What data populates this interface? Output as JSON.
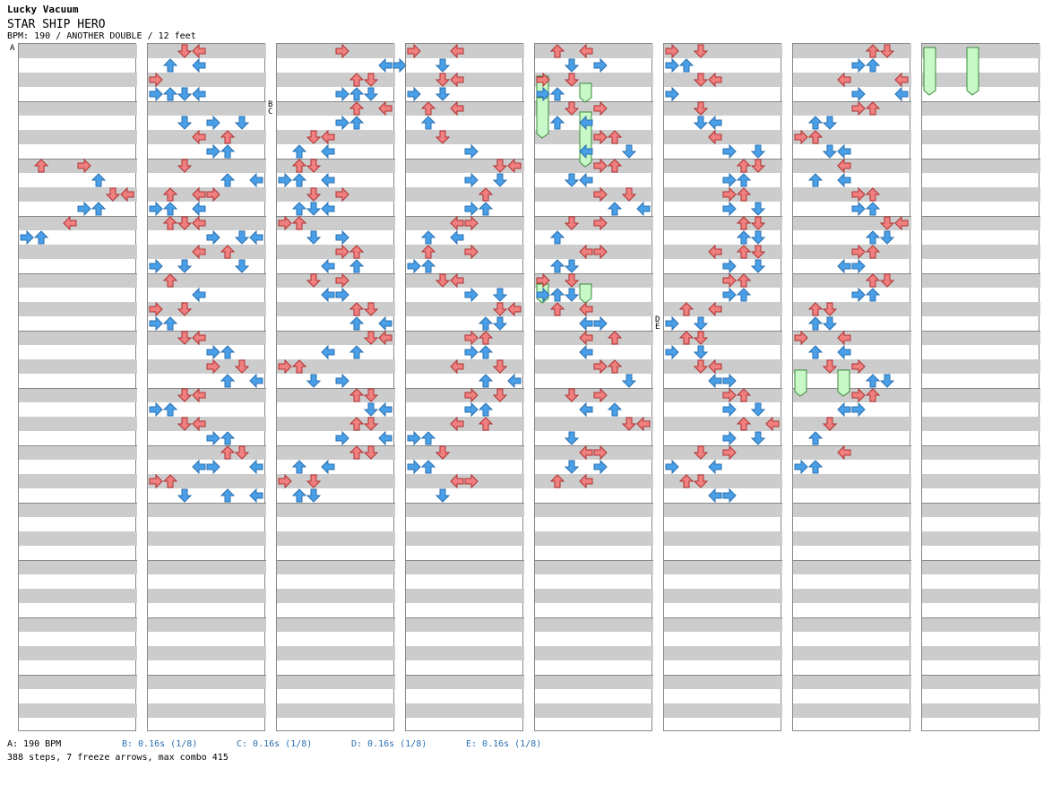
{
  "artist": "Lucky Vacuum",
  "title": "STAR SHIP HERO",
  "info": "BPM: 190 / ANOTHER DOUBLE / 12 feet",
  "markers": [
    "A",
    "B",
    "C",
    "D",
    "E"
  ],
  "footer": {
    "bpm_a": "A: 190 BPM",
    "stop_b": "B: 0.16s (1/8)",
    "stop_c": "C: 0.16s (1/8)",
    "stop_d": "D: 0.16s (1/8)",
    "stop_e": "E: 0.16s (1/8)"
  },
  "stats": "388 steps, 7 freeze arrows, max combo 415",
  "colors": {
    "quarter": "#f08080",
    "eighth": "#4aa0e8",
    "freeze": "#c8f8c8",
    "stripe": "#cccccc",
    "border": "#888888"
  },
  "notes": [
    [
      [
        8,
        1
      ],
      [
        8,
        4
      ],
      [
        9,
        5
      ],
      [
        10,
        6
      ],
      [
        10,
        7
      ],
      [
        11,
        5
      ],
      [
        11,
        4
      ],
      [
        12,
        3
      ],
      [
        13,
        0
      ],
      [
        13,
        1
      ]
    ],
    [
      [
        0,
        3
      ],
      [
        0,
        2
      ],
      [
        1,
        1
      ],
      [
        1,
        3
      ],
      [
        2,
        0
      ],
      [
        3,
        3
      ],
      [
        3,
        1
      ],
      [
        3,
        0
      ],
      [
        3,
        2
      ],
      [
        5,
        2
      ],
      [
        5,
        4
      ],
      [
        5,
        6
      ],
      [
        6,
        3
      ],
      [
        6,
        5
      ],
      [
        7,
        4
      ],
      [
        7,
        5
      ],
      [
        8,
        2
      ],
      [
        9,
        7
      ],
      [
        9,
        5
      ],
      [
        10,
        1
      ],
      [
        10,
        3
      ],
      [
        10,
        4
      ],
      [
        11,
        3
      ],
      [
        11,
        1
      ],
      [
        11,
        0
      ],
      [
        12,
        1
      ],
      [
        12,
        2
      ],
      [
        12,
        3
      ],
      [
        13,
        4
      ],
      [
        13,
        6
      ],
      [
        13,
        7
      ],
      [
        14,
        5
      ],
      [
        14,
        3
      ],
      [
        15,
        6
      ],
      [
        15,
        0
      ],
      [
        15,
        2
      ],
      [
        16,
        1
      ],
      [
        17,
        3
      ],
      [
        18,
        0
      ],
      [
        18,
        2
      ],
      [
        19,
        0
      ],
      [
        19,
        1
      ],
      [
        20,
        2
      ],
      [
        20,
        3
      ],
      [
        21,
        4
      ],
      [
        21,
        5
      ],
      [
        22,
        4
      ],
      [
        22,
        6
      ],
      [
        23,
        7
      ],
      [
        23,
        5
      ],
      [
        24,
        3
      ],
      [
        24,
        2
      ],
      [
        25,
        1
      ],
      [
        25,
        0
      ],
      [
        26,
        2
      ],
      [
        26,
        3
      ],
      [
        27,
        4
      ],
      [
        27,
        5
      ],
      [
        28,
        6
      ],
      [
        28,
        5
      ],
      [
        29,
        7
      ],
      [
        29,
        4
      ],
      [
        29,
        3
      ],
      [
        30,
        0
      ],
      [
        30,
        1
      ],
      [
        31,
        2
      ],
      [
        31,
        5
      ],
      [
        31,
        7
      ]
    ],
    [
      [
        0,
        4
      ],
      [
        1,
        7
      ],
      [
        1,
        8
      ],
      [
        2,
        5
      ],
      [
        2,
        6
      ],
      [
        3,
        5
      ],
      [
        3,
        6
      ],
      [
        3,
        4
      ],
      [
        4,
        7
      ],
      [
        4,
        5
      ],
      [
        5,
        5
      ],
      [
        5,
        4
      ],
      [
        6,
        2
      ],
      [
        6,
        3
      ],
      [
        7,
        1
      ],
      [
        7,
        3
      ],
      [
        8,
        1
      ],
      [
        8,
        2
      ],
      [
        9,
        0
      ],
      [
        9,
        1
      ],
      [
        9,
        3
      ],
      [
        10,
        2
      ],
      [
        10,
        4
      ],
      [
        11,
        1
      ],
      [
        11,
        3
      ],
      [
        11,
        2
      ],
      [
        12,
        0
      ],
      [
        12,
        1
      ],
      [
        13,
        2
      ],
      [
        13,
        4
      ],
      [
        14,
        5
      ],
      [
        14,
        4
      ],
      [
        15,
        5
      ],
      [
        15,
        3
      ],
      [
        16,
        4
      ],
      [
        16,
        2
      ],
      [
        17,
        3
      ],
      [
        17,
        4
      ],
      [
        18,
        6
      ],
      [
        18,
        5
      ],
      [
        19,
        5
      ],
      [
        19,
        7
      ],
      [
        20,
        7
      ],
      [
        20,
        6
      ],
      [
        21,
        5
      ],
      [
        21,
        3
      ],
      [
        22,
        1
      ],
      [
        22,
        0
      ],
      [
        23,
        2
      ],
      [
        23,
        4
      ],
      [
        24,
        5
      ],
      [
        24,
        6
      ],
      [
        25,
        7
      ],
      [
        25,
        6
      ],
      [
        26,
        6
      ],
      [
        26,
        5
      ],
      [
        27,
        7
      ],
      [
        27,
        4
      ],
      [
        28,
        6
      ],
      [
        28,
        5
      ],
      [
        29,
        3
      ],
      [
        29,
        1
      ],
      [
        30,
        0
      ],
      [
        30,
        2
      ],
      [
        31,
        1
      ],
      [
        31,
        2
      ]
    ],
    [
      [
        0,
        0
      ],
      [
        0,
        3
      ],
      [
        1,
        2
      ],
      [
        2,
        2
      ],
      [
        2,
        3
      ],
      [
        3,
        0
      ],
      [
        3,
        2
      ],
      [
        4,
        1
      ],
      [
        4,
        3
      ],
      [
        5,
        1
      ],
      [
        6,
        2
      ],
      [
        7,
        4
      ],
      [
        8,
        6
      ],
      [
        8,
        7
      ],
      [
        9,
        4
      ],
      [
        9,
        6
      ],
      [
        10,
        5
      ],
      [
        11,
        5
      ],
      [
        11,
        4
      ],
      [
        12,
        4
      ],
      [
        12,
        3
      ],
      [
        13,
        1
      ],
      [
        13,
        3
      ],
      [
        14,
        4
      ],
      [
        14,
        1
      ],
      [
        15,
        0
      ],
      [
        15,
        1
      ],
      [
        16,
        2
      ],
      [
        16,
        3
      ],
      [
        17,
        4
      ],
      [
        17,
        6
      ],
      [
        18,
        7
      ],
      [
        18,
        6
      ],
      [
        19,
        6
      ],
      [
        19,
        5
      ],
      [
        20,
        4
      ],
      [
        20,
        5
      ],
      [
        21,
        5
      ],
      [
        21,
        4
      ],
      [
        22,
        3
      ],
      [
        22,
        6
      ],
      [
        23,
        5
      ],
      [
        23,
        7
      ],
      [
        24,
        4
      ],
      [
        24,
        6
      ],
      [
        25,
        5
      ],
      [
        25,
        4
      ],
      [
        26,
        3
      ],
      [
        26,
        5
      ],
      [
        27,
        0
      ],
      [
        27,
        1
      ],
      [
        28,
        2
      ],
      [
        28,
        2
      ],
      [
        29,
        0
      ],
      [
        29,
        1
      ],
      [
        30,
        3
      ],
      [
        30,
        4
      ],
      [
        31,
        2
      ]
    ],
    [
      [
        0,
        1
      ],
      [
        0,
        3
      ],
      [
        1,
        2
      ],
      [
        1,
        4
      ],
      [
        2,
        0
      ],
      [
        2,
        2
      ],
      [
        3,
        0
      ],
      [
        3,
        1
      ],
      [
        4,
        4
      ],
      [
        4,
        2
      ],
      [
        5,
        1
      ],
      [
        5,
        3
      ],
      [
        6,
        4
      ],
      [
        6,
        5
      ],
      [
        7,
        3
      ],
      [
        7,
        6
      ],
      [
        8,
        4
      ],
      [
        8,
        5
      ],
      [
        9,
        3
      ],
      [
        9,
        2
      ],
      [
        10,
        4
      ],
      [
        10,
        6
      ],
      [
        11,
        7
      ],
      [
        11,
        5
      ],
      [
        12,
        4
      ],
      [
        12,
        2
      ],
      [
        13,
        1
      ],
      [
        14,
        3
      ],
      [
        14,
        4
      ],
      [
        15,
        2
      ],
      [
        15,
        1
      ],
      [
        16,
        0
      ],
      [
        16,
        2
      ],
      [
        17,
        0
      ],
      [
        17,
        1
      ],
      [
        17,
        2
      ],
      [
        18,
        1
      ],
      [
        18,
        3
      ],
      [
        19,
        4
      ],
      [
        19,
        3
      ],
      [
        20,
        5
      ],
      [
        20,
        3
      ],
      [
        21,
        3
      ],
      [
        22,
        4
      ],
      [
        22,
        5
      ],
      [
        23,
        6
      ],
      [
        24,
        2
      ],
      [
        24,
        4
      ],
      [
        25,
        3
      ],
      [
        25,
        5
      ],
      [
        26,
        6
      ],
      [
        26,
        7
      ],
      [
        27,
        2
      ],
      [
        28,
        3
      ],
      [
        28,
        4
      ],
      [
        29,
        2
      ],
      [
        29,
        4
      ],
      [
        30,
        1
      ],
      [
        30,
        3
      ]
    ],
    [
      [
        0,
        0
      ],
      [
        0,
        2
      ],
      [
        1,
        0
      ],
      [
        1,
        1
      ],
      [
        2,
        3
      ],
      [
        2,
        2
      ],
      [
        3,
        0
      ],
      [
        3,
        0
      ],
      [
        4,
        2
      ],
      [
        4,
        2
      ],
      [
        5,
        3
      ],
      [
        5,
        2
      ],
      [
        6,
        3
      ],
      [
        6,
        3
      ],
      [
        7,
        4
      ],
      [
        7,
        6
      ],
      [
        8,
        6
      ],
      [
        8,
        5
      ],
      [
        9,
        5
      ],
      [
        9,
        4
      ],
      [
        10,
        5
      ],
      [
        10,
        4
      ],
      [
        11,
        6
      ],
      [
        11,
        4
      ],
      [
        12,
        5
      ],
      [
        12,
        6
      ],
      [
        13,
        5
      ],
      [
        13,
        6
      ],
      [
        14,
        3
      ],
      [
        14,
        5
      ],
      [
        14,
        6
      ],
      [
        15,
        4
      ],
      [
        15,
        6
      ],
      [
        16,
        5
      ],
      [
        16,
        4
      ],
      [
        17,
        4
      ],
      [
        17,
        5
      ],
      [
        18,
        3
      ],
      [
        18,
        1
      ],
      [
        19,
        0
      ],
      [
        19,
        2
      ],
      [
        20,
        2
      ],
      [
        20,
        1
      ],
      [
        21,
        2
      ],
      [
        21,
        0
      ],
      [
        22,
        3
      ],
      [
        22,
        2
      ],
      [
        23,
        3
      ],
      [
        23,
        4
      ],
      [
        24,
        5
      ],
      [
        24,
        4
      ],
      [
        25,
        4
      ],
      [
        25,
        6
      ],
      [
        26,
        5
      ],
      [
        26,
        7
      ],
      [
        27,
        6
      ],
      [
        27,
        4
      ],
      [
        28,
        4
      ],
      [
        28,
        2
      ],
      [
        29,
        3
      ],
      [
        29,
        0
      ],
      [
        30,
        1
      ],
      [
        30,
        2
      ],
      [
        31,
        3
      ],
      [
        31,
        4
      ]
    ],
    [
      [
        0,
        5
      ],
      [
        0,
        6
      ],
      [
        1,
        4
      ],
      [
        1,
        5
      ],
      [
        2,
        7
      ],
      [
        2,
        3
      ],
      [
        3,
        4
      ],
      [
        3,
        7
      ],
      [
        4,
        5
      ],
      [
        4,
        4
      ],
      [
        5,
        1
      ],
      [
        5,
        2
      ],
      [
        6,
        0
      ],
      [
        6,
        1
      ],
      [
        7,
        2
      ],
      [
        7,
        3
      ],
      [
        8,
        3
      ],
      [
        8,
        3
      ],
      [
        9,
        1
      ],
      [
        9,
        3
      ],
      [
        10,
        4
      ],
      [
        10,
        5
      ],
      [
        11,
        4
      ],
      [
        11,
        5
      ],
      [
        12,
        6
      ],
      [
        12,
        7
      ],
      [
        13,
        5
      ],
      [
        13,
        6
      ],
      [
        14,
        4
      ],
      [
        14,
        5
      ],
      [
        15,
        3
      ],
      [
        15,
        4
      ],
      [
        16,
        5
      ],
      [
        16,
        6
      ],
      [
        17,
        4
      ],
      [
        17,
        5
      ],
      [
        18,
        1
      ],
      [
        18,
        2
      ],
      [
        19,
        1
      ],
      [
        19,
        2
      ],
      [
        20,
        0
      ],
      [
        20,
        3
      ],
      [
        21,
        1
      ],
      [
        21,
        3
      ],
      [
        22,
        4
      ],
      [
        22,
        2
      ],
      [
        23,
        5
      ],
      [
        23,
        6
      ],
      [
        24,
        5
      ],
      [
        24,
        4
      ],
      [
        25,
        3
      ],
      [
        25,
        4
      ],
      [
        26,
        2
      ],
      [
        26,
        2
      ],
      [
        27,
        1
      ],
      [
        28,
        3
      ],
      [
        29,
        0
      ],
      [
        29,
        1
      ]
    ]
  ],
  "freezes": [
    [],
    [],
    [],
    [],
    [
      [
        4,
        10
      ],
      [
        5,
        7
      ],
      [
        7,
        12
      ],
      [
        9,
        16
      ],
      [
        33,
        35
      ],
      [
        33,
        35
      ]
    ],
    [],
    [
      [
        45,
        48
      ],
      [
        45,
        48
      ]
    ],
    [
      [
        0,
        6
      ],
      [
        0,
        6
      ]
    ]
  ]
}
